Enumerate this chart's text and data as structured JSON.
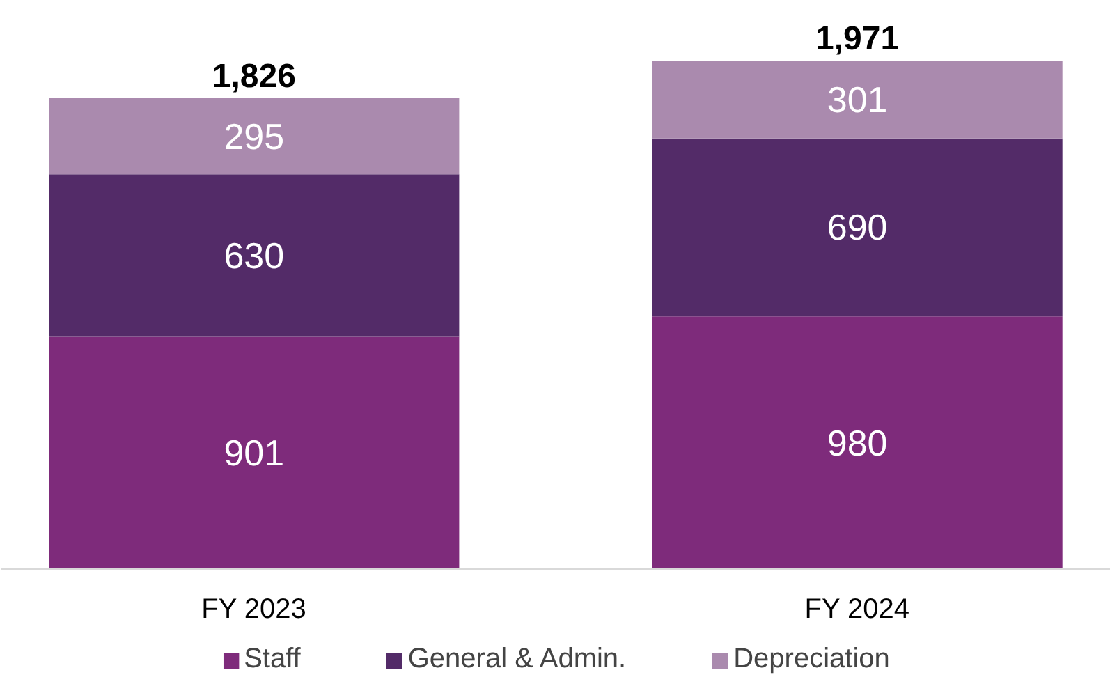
{
  "chart_data": {
    "type": "bar",
    "stacked": true,
    "categories": [
      "FY 2023",
      "FY 2024"
    ],
    "series": [
      {
        "name": "Staff",
        "color": "#7e2b7b",
        "values": [
          901,
          980
        ]
      },
      {
        "name": "General & Admin.",
        "color": "#532b68",
        "values": [
          630,
          690
        ]
      },
      {
        "name": "Depreciation",
        "color": "#aa8aae",
        "values": [
          295,
          301
        ]
      }
    ],
    "data_labels": true,
    "totals": [
      "1,826",
      "1,971"
    ],
    "legend": "bottom",
    "grid": false
  }
}
